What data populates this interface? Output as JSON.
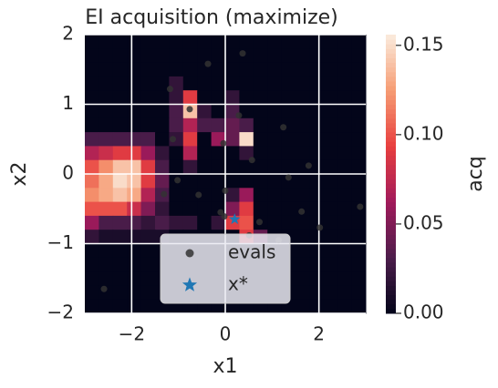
{
  "chart_data": {
    "type": "heatmap",
    "title": "EI acquisition (maximize)",
    "x_label": "x1",
    "y_label": "x2",
    "xlim": [
      -3,
      3
    ],
    "ylim": [
      -2,
      2
    ],
    "xticks": [
      {
        "value": -2,
        "label": "−2"
      },
      0,
      2
    ],
    "yticks": [
      {
        "value": -2,
        "label": "−2"
      },
      {
        "value": -1,
        "label": "−1"
      },
      0,
      1,
      2
    ],
    "grid": true,
    "colormap": "rocket",
    "zlim": [
      0,
      0.156
    ],
    "colorbar_label": "acq",
    "colorbar_ticks": [
      {
        "value": 0,
        "label": "0.00"
      },
      {
        "value": 0.05,
        "label": "0.05"
      },
      {
        "value": 0.1,
        "label": "0.10"
      },
      {
        "value": 0.15,
        "label": "0.15"
      }
    ],
    "z": [
      [
        0,
        0,
        0,
        0,
        0,
        0,
        0,
        0,
        0,
        0,
        0,
        0,
        0,
        0,
        0,
        0,
        0,
        0,
        0,
        0
      ],
      [
        0,
        0,
        0,
        0,
        0,
        0,
        0,
        0,
        0,
        0,
        0,
        0,
        0,
        0,
        0,
        0,
        0,
        0,
        0,
        0
      ],
      [
        0,
        0,
        0,
        0,
        0,
        0,
        0,
        0,
        0,
        0,
        0,
        0,
        0,
        0,
        0,
        0,
        0,
        0,
        0,
        0
      ],
      [
        0,
        0,
        0,
        0,
        0,
        0,
        0.02,
        0,
        0,
        0,
        0,
        0,
        0,
        0,
        0,
        0,
        0,
        0,
        0,
        0
      ],
      [
        0,
        0,
        0,
        0,
        0,
        0,
        0.02,
        0.09,
        0,
        0,
        0.02,
        0,
        0,
        0,
        0,
        0,
        0,
        0,
        0,
        0
      ],
      [
        0,
        0,
        0,
        0,
        0,
        0,
        0.03,
        0.14,
        0.02,
        0,
        0.03,
        0,
        0,
        0,
        0,
        0,
        0,
        0,
        0,
        0
      ],
      [
        0,
        0,
        0,
        0,
        0,
        0,
        0.03,
        0.07,
        0.03,
        0.03,
        0.04,
        0.03,
        0,
        0,
        0,
        0,
        0,
        0,
        0,
        0
      ],
      [
        0.03,
        0.03,
        0.03,
        0.03,
        0.03,
        0,
        0.02,
        0.09,
        0,
        0.06,
        0.04,
        0.15,
        0,
        0,
        0,
        0,
        0,
        0,
        0,
        0
      ],
      [
        0.07,
        0.08,
        0.09,
        0.09,
        0.06,
        0.02,
        0,
        0.07,
        0,
        0,
        0,
        0.02,
        0,
        0,
        0,
        0,
        0,
        0,
        0,
        0
      ],
      [
        0.1,
        0.12,
        0.14,
        0.14,
        0.09,
        0.03,
        0,
        0.02,
        0,
        0,
        0,
        0,
        0,
        0,
        0,
        0,
        0,
        0,
        0,
        0
      ],
      [
        0.11,
        0.13,
        0.15,
        0.14,
        0.09,
        0.04,
        0,
        0,
        0,
        0,
        0,
        0,
        0,
        0,
        0,
        0,
        0,
        0,
        0,
        0
      ],
      [
        0.12,
        0.13,
        0.14,
        0.13,
        0.07,
        0.03,
        0,
        0,
        0,
        0,
        0.02,
        0.06,
        0,
        0,
        0,
        0,
        0,
        0,
        0,
        0
      ],
      [
        0.1,
        0.1,
        0.1,
        0.08,
        0.05,
        0.02,
        0,
        0,
        0,
        0,
        0.05,
        0.09,
        0,
        0,
        0,
        0,
        0,
        0,
        0,
        0
      ],
      [
        0.06,
        0.03,
        0.03,
        0.03,
        0.02,
        0.03,
        0.02,
        0.02,
        0,
        0.02,
        0.09,
        0.1,
        0,
        0,
        0,
        0,
        0,
        0,
        0,
        0
      ],
      [
        0.02,
        0.01,
        0.01,
        0.01,
        0.01,
        0.01,
        0,
        0,
        0,
        0,
        0,
        0.09,
        0.04,
        0,
        0,
        0,
        0,
        0,
        0,
        0
      ],
      [
        0,
        0,
        0,
        0,
        0,
        0,
        0,
        0,
        0,
        0,
        0,
        0,
        0,
        0,
        0,
        0,
        0,
        0,
        0,
        0
      ],
      [
        0,
        0,
        0,
        0,
        0,
        0,
        0,
        0,
        0,
        0,
        0,
        0,
        0,
        0,
        0,
        0,
        0,
        0,
        0,
        0
      ],
      [
        0,
        0,
        0,
        0,
        0,
        0,
        0,
        0,
        0,
        0,
        0,
        0,
        0,
        0,
        0,
        0,
        0,
        0,
        0,
        0
      ],
      [
        0,
        0,
        0,
        0,
        0,
        0,
        0,
        0,
        0,
        0,
        0,
        0,
        0,
        0,
        0,
        0,
        0,
        0,
        0,
        0
      ],
      [
        0,
        0,
        0,
        0,
        0,
        0,
        0,
        0,
        0,
        0,
        0,
        0,
        0,
        0,
        0,
        0,
        0,
        0,
        0,
        0
      ]
    ],
    "series": [
      {
        "name": "evals",
        "color": "#333333",
        "marker": "circle",
        "x": [
          -0.37,
          0.37,
          -1.18,
          -0.76,
          0.29,
          1.24,
          -1.12,
          -0.04,
          0.57,
          1.78,
          -1.02,
          -0.57,
          -1.31,
          0,
          1.35,
          2.88,
          1.63,
          -0.1,
          0.73,
          2.02,
          1.14,
          -2.59,
          0.51,
          -0.02
        ],
        "y": [
          1.58,
          1.73,
          1.22,
          0.93,
          0.84,
          0.67,
          0.5,
          0.44,
          0.2,
          0.12,
          -0.09,
          -0.3,
          -0.29,
          -0.24,
          -0.05,
          -0.47,
          -0.54,
          -0.55,
          -0.69,
          -0.77,
          -0.95,
          -1.65,
          -0.88,
          -0.61
        ]
      },
      {
        "name": "x*",
        "color": "#1f77b4",
        "marker": "star",
        "x": [
          0.2
        ],
        "y": [
          -0.65
        ]
      }
    ],
    "legend": "lower center"
  }
}
